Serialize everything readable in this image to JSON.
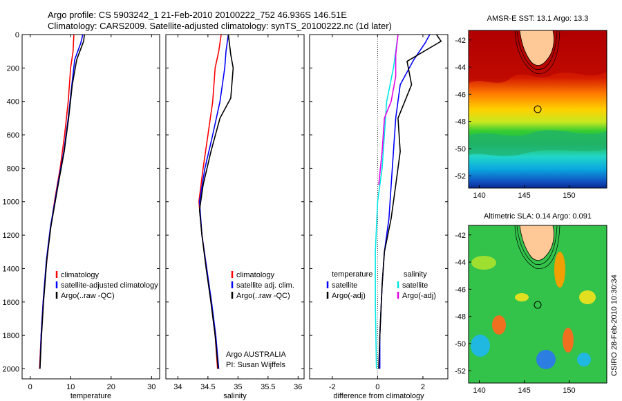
{
  "header": {
    "line1": "Argo profile: CS 5903242_1 21-Feb-2010 20100222_752 46.936S 146.51E",
    "line2": "Climatology: CARS2009. Satellite-adjusted climatology: synTS_20100222.nc (1d later)"
  },
  "side_label": "CSIRO 28-Feb-2010 10:30:34",
  "colors": {
    "climatology": "#ff0000",
    "satellite": "#0000ff",
    "argo": "#000000",
    "sat_salinity": "#00e5e5",
    "argo_salinity": "#e600e6"
  },
  "chart_data": [
    {
      "type": "line",
      "xlabel": "temperature",
      "xlim": [
        -2,
        32
      ],
      "ylim": [
        2060,
        0
      ],
      "xticks": [
        "0",
        "10",
        "20",
        "30"
      ],
      "yticks": [
        "0",
        "200",
        "400",
        "600",
        "800",
        "1000",
        "1200",
        "1400",
        "1600",
        "1800",
        "2000"
      ],
      "legend": [
        "climatology",
        "satellite-adjusted climatology",
        "Argo(..raw -QC)"
      ],
      "series": [
        {
          "name": "climatology",
          "points": [
            [
              10.8,
              0
            ],
            [
              10.6,
              100
            ],
            [
              10.0,
              200
            ],
            [
              9.4,
              400
            ],
            [
              8.5,
              600
            ],
            [
              7.4,
              800
            ],
            [
              6.0,
              1000
            ],
            [
              4.8,
              1200
            ],
            [
              3.9,
              1400
            ],
            [
              3.2,
              1600
            ],
            [
              2.7,
              1800
            ],
            [
              2.3,
              2000
            ]
          ]
        },
        {
          "name": "satellite-adjusted climatology",
          "points": [
            [
              13.0,
              0
            ],
            [
              12.5,
              50
            ],
            [
              11.0,
              150
            ],
            [
              10.3,
              300
            ],
            [
              9.4,
              500
            ],
            [
              8.3,
              700
            ],
            [
              6.8,
              900
            ],
            [
              5.0,
              1150
            ],
            [
              4.0,
              1350
            ],
            [
              3.2,
              1600
            ],
            [
              2.7,
              1800
            ],
            [
              2.4,
              2000
            ]
          ]
        },
        {
          "name": "Argo(..raw -QC)",
          "points": [
            [
              13.4,
              0
            ],
            [
              13.2,
              40
            ],
            [
              11.5,
              150
            ],
            [
              10.4,
              300
            ],
            [
              9.5,
              500
            ],
            [
              8.4,
              700
            ],
            [
              6.9,
              900
            ],
            [
              5.1,
              1150
            ],
            [
              4.1,
              1350
            ],
            [
              3.3,
              1600
            ],
            [
              2.8,
              1800
            ],
            [
              2.4,
              2000
            ]
          ]
        }
      ]
    },
    {
      "type": "line",
      "xlabel": "salinity",
      "xlim": [
        33.8,
        36.1
      ],
      "ylim": [
        2060,
        0
      ],
      "xticks": [
        "34",
        "34.5",
        "35",
        "35.5",
        "36"
      ],
      "legend": [
        "climatology",
        "satellite adj. clim.",
        "Argo(..raw -QC)"
      ],
      "annotation": [
        "Argo AUSTRALIA",
        "PI: Susan Wijffels"
      ],
      "series": [
        {
          "name": "climatology",
          "points": [
            [
              34.72,
              0
            ],
            [
              34.68,
              100
            ],
            [
              34.62,
              200
            ],
            [
              34.58,
              400
            ],
            [
              34.5,
              600
            ],
            [
              34.42,
              800
            ],
            [
              34.35,
              1000
            ],
            [
              34.4,
              1200
            ],
            [
              34.48,
              1400
            ],
            [
              34.55,
              1600
            ],
            [
              34.62,
              1800
            ],
            [
              34.66,
              2000
            ]
          ]
        },
        {
          "name": "satellite adj. clim.",
          "points": [
            [
              34.84,
              0
            ],
            [
              34.8,
              100
            ],
            [
              34.78,
              200
            ],
            [
              34.7,
              400
            ],
            [
              34.58,
              600
            ],
            [
              34.45,
              800
            ],
            [
              34.36,
              1000
            ],
            [
              34.4,
              1200
            ],
            [
              34.48,
              1400
            ],
            [
              34.56,
              1600
            ],
            [
              34.63,
              1800
            ],
            [
              34.68,
              2000
            ]
          ]
        },
        {
          "name": "Argo(..raw -QC)",
          "points": [
            [
              34.84,
              0
            ],
            [
              34.88,
              120
            ],
            [
              34.92,
              200
            ],
            [
              34.88,
              380
            ],
            [
              34.7,
              500
            ],
            [
              34.55,
              700
            ],
            [
              34.42,
              900
            ],
            [
              34.36,
              1050
            ],
            [
              34.4,
              1200
            ],
            [
              34.47,
              1400
            ],
            [
              34.55,
              1600
            ],
            [
              34.62,
              1800
            ],
            [
              34.67,
              2000
            ]
          ]
        }
      ]
    },
    {
      "type": "line",
      "xlabel": "difference from climatology",
      "xlim": [
        -3,
        3.1
      ],
      "ylim": [
        2060,
        0
      ],
      "xticks": [
        "-2",
        "0",
        "2"
      ],
      "legend_left_title": "temperature",
      "legend_right_title": "salinity",
      "legend": [
        "satellite",
        "Argo(-adj)",
        "satellite",
        "Argo(-adj)"
      ],
      "series": [
        {
          "name": "satellite",
          "points": [
            [
              2.3,
              0
            ],
            [
              2.1,
              50
            ],
            [
              1.6,
              150
            ],
            [
              1.0,
              300
            ],
            [
              0.8,
              500
            ],
            [
              0.7,
              700
            ],
            [
              0.6,
              900
            ],
            [
              0.5,
              1100
            ],
            [
              0.3,
              1300
            ],
            [
              0.2,
              1500
            ],
            [
              0.1,
              1800
            ],
            [
              0.1,
              2000
            ]
          ]
        },
        {
          "name": "Argo(-adj)",
          "points": [
            [
              2.6,
              0
            ],
            [
              2.8,
              40
            ],
            [
              1.3,
              160
            ],
            [
              1.5,
              300
            ],
            [
              0.9,
              500
            ],
            [
              1.0,
              700
            ],
            [
              0.8,
              900
            ],
            [
              0.6,
              1100
            ],
            [
              0.3,
              1300
            ],
            [
              0.2,
              1500
            ],
            [
              0.1,
              1800
            ],
            [
              0.05,
              2000
            ]
          ]
        },
        {
          "name": "satellite",
          "points": [
            [
              0.9,
              0
            ],
            [
              0.8,
              100
            ],
            [
              0.7,
              200
            ],
            [
              0.4,
              400
            ],
            [
              0.3,
              600
            ],
            [
              0.2,
              800
            ],
            [
              0.0,
              1000
            ],
            [
              -0.1,
              1300
            ],
            [
              -0.1,
              1600
            ],
            [
              -0.05,
              2000
            ]
          ]
        },
        {
          "name": "Argo(-adj)",
          "points": [
            [
              0.9,
              0
            ],
            [
              0.8,
              120
            ],
            [
              0.8,
              250
            ],
            [
              0.6,
              400
            ],
            [
              0.3,
              500
            ],
            [
              0.2,
              700
            ],
            [
              0.05,
              900
            ]
          ]
        }
      ]
    }
  ],
  "maps": [
    {
      "title": "AMSR-E SST: 13.1 Argo: 13.3",
      "xticks": [
        "140",
        "145",
        "150"
      ],
      "yticks": [
        "-42",
        "-44",
        "-46",
        "-48",
        "-50",
        "-52"
      ]
    },
    {
      "title": "Altimetric SLA: 0.14 Argo: 0.091",
      "xticks": [
        "140",
        "145",
        "150"
      ],
      "yticks": [
        "-42",
        "-44",
        "-46",
        "-48",
        "-50",
        "-52"
      ]
    }
  ]
}
